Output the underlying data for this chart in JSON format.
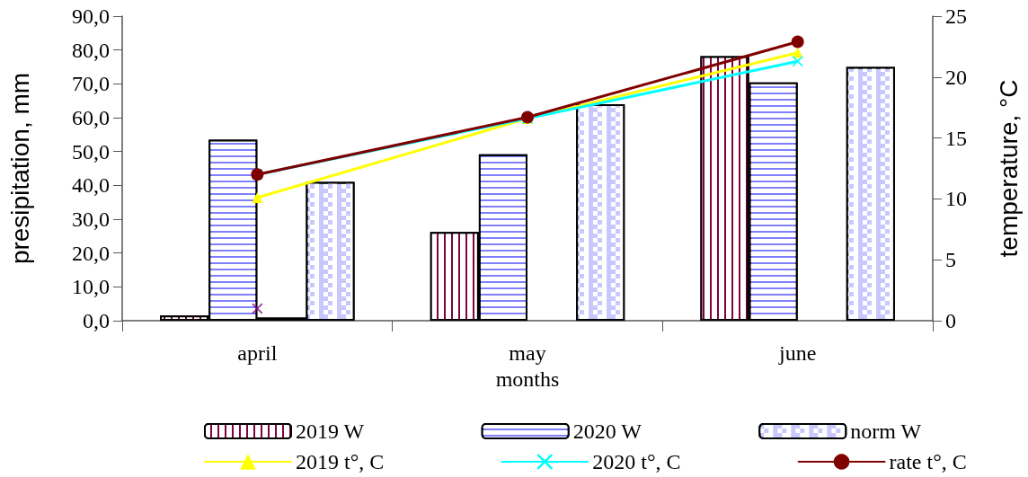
{
  "chart_data": {
    "type": "bar",
    "xlabel": "months",
    "ylabel": "presipitation, mm",
    "y2label": "temperature, °C",
    "categories": [
      "april",
      "may",
      "june"
    ],
    "series": [
      {
        "name": "2019 W",
        "color": "#800040",
        "values": [
          1.5,
          26.2,
          78.2
        ]
      },
      {
        "name": "2020 W",
        "color": "#8080ff",
        "values": [
          53.5,
          49.2,
          70.4
        ]
      },
      {
        "color": "#003366",
        "values": [
          0.9,
          null,
          null
        ]
      },
      {
        "name": "norm W",
        "color": "#c8c8ff",
        "values": [
          41.0,
          64.0,
          75.0
        ]
      },
      {
        "name": "2019 t°, C",
        "type": "line",
        "axis": "y2",
        "marker": "triangle",
        "color": "#ffff00",
        "values": [
          10.1,
          16.6,
          22.0
        ]
      },
      {
        "name": "2020 t°, C",
        "type": "line",
        "axis": "y2",
        "marker": "cross",
        "color": "#00ffff",
        "values": [
          12.0,
          16.6,
          21.3
        ]
      },
      {
        "name": "rate t°, C",
        "type": "line",
        "axis": "y2",
        "marker": "circle",
        "color": "#800000",
        "values": [
          12.0,
          16.7,
          22.9
        ]
      },
      {
        "type": "scatter",
        "axis": "y2",
        "marker": "cross",
        "color": "#800080",
        "values": [
          1.0,
          null,
          null
        ]
      }
    ],
    "ylim": [
      0,
      90
    ],
    "yticks": [
      {
        "value": 0,
        "label": "0,0"
      },
      {
        "value": 10,
        "label": "10,0"
      },
      {
        "value": 20,
        "label": "20,0"
      },
      {
        "value": 30,
        "label": "30,0"
      },
      {
        "value": 40,
        "label": "40,0"
      },
      {
        "value": 50,
        "label": "50,0"
      },
      {
        "value": 60,
        "label": "60,0"
      },
      {
        "value": 70,
        "label": "70,0"
      },
      {
        "value": 80,
        "label": "80,0"
      },
      {
        "value": 90,
        "label": "90,0"
      }
    ],
    "y2lim": [
      0,
      25
    ],
    "y2ticks": [
      0,
      5,
      10,
      15,
      20,
      25
    ],
    "grid": false,
    "legend": "bottom"
  }
}
